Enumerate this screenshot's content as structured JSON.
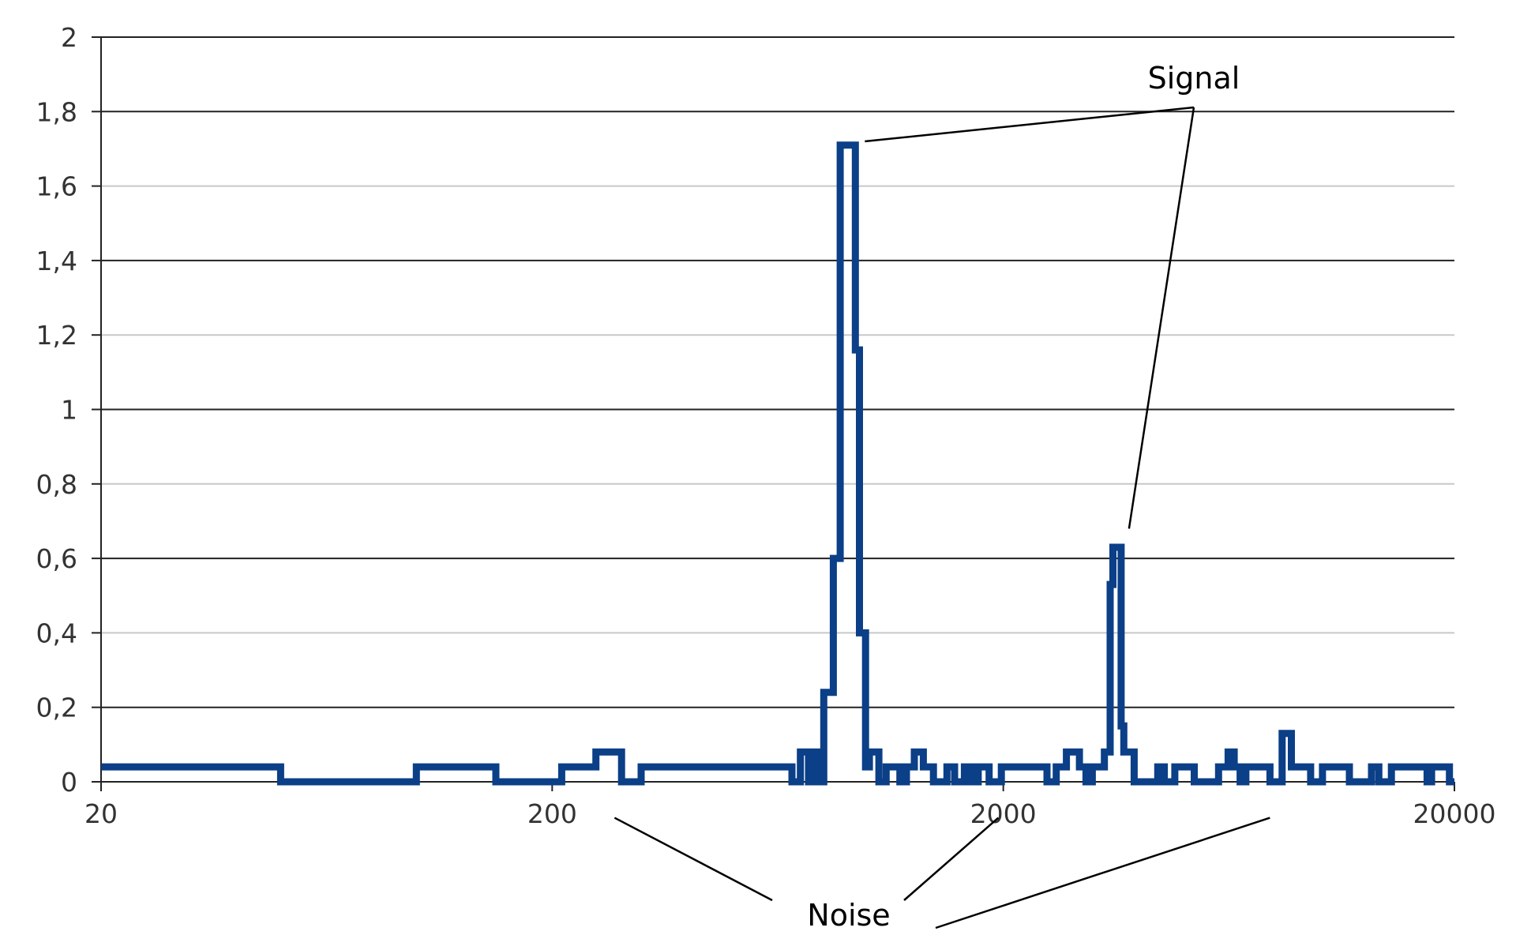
{
  "chart_data": {
    "type": "line",
    "title": "",
    "xlabel": "",
    "ylabel": "",
    "x_scale": "log",
    "xlim": [
      20,
      20000
    ],
    "ylim": [
      0,
      2
    ],
    "x_ticks": [
      20,
      200,
      2000,
      20000
    ],
    "x_tick_labels": [
      "20",
      "200",
      "2000",
      "20000"
    ],
    "y_ticks": [
      0,
      0.2,
      0.4,
      0.6,
      0.8,
      1,
      1.2,
      1.4,
      1.6,
      1.8,
      2
    ],
    "y_tick_labels": [
      "0",
      "0,2",
      "0,4",
      "0,6",
      "0,8",
      "1",
      "1,2",
      "1,4",
      "1,6",
      "1,8",
      "2"
    ],
    "major_gridlines": [
      0,
      0.2,
      0.6,
      1,
      1.4,
      1.8,
      2
    ],
    "minor_gridlines": [
      0.4,
      0.8,
      1.2,
      1.6
    ],
    "legend": "none",
    "line_color": "#0b3f87",
    "series": [
      {
        "step": true,
        "points": [
          [
            20,
            0.04
          ],
          [
            50,
            0.04
          ],
          [
            50,
            0
          ],
          [
            100,
            0
          ],
          [
            100,
            0.04
          ],
          [
            150,
            0.04
          ],
          [
            150,
            0
          ],
          [
            210,
            0
          ],
          [
            210,
            0.04
          ],
          [
            250,
            0.04
          ],
          [
            250,
            0.08
          ],
          [
            285,
            0.08
          ],
          [
            285,
            0
          ],
          [
            315,
            0
          ],
          [
            315,
            0.04
          ],
          [
            680,
            0.04
          ],
          [
            680,
            0
          ],
          [
            710,
            0
          ],
          [
            710,
            0.08
          ],
          [
            740,
            0.08
          ],
          [
            740,
            0
          ],
          [
            760,
            0
          ],
          [
            760,
            0.08
          ],
          [
            780,
            0.08
          ],
          [
            780,
            0
          ],
          [
            800,
            0
          ],
          [
            800,
            0.24
          ],
          [
            840,
            0.24
          ],
          [
            840,
            0.6
          ],
          [
            870,
            0.6
          ],
          [
            870,
            1.71
          ],
          [
            940,
            1.71
          ],
          [
            940,
            1.16
          ],
          [
            960,
            1.16
          ],
          [
            960,
            0.4
          ],
          [
            990,
            0.4
          ],
          [
            990,
            0.04
          ],
          [
            1010,
            0.04
          ],
          [
            1010,
            0.08
          ],
          [
            1060,
            0.08
          ],
          [
            1060,
            0
          ],
          [
            1100,
            0
          ],
          [
            1100,
            0.04
          ],
          [
            1180,
            0.04
          ],
          [
            1180,
            0
          ],
          [
            1220,
            0
          ],
          [
            1220,
            0.04
          ],
          [
            1270,
            0.04
          ],
          [
            1270,
            0.08
          ],
          [
            1330,
            0.08
          ],
          [
            1330,
            0.04
          ],
          [
            1400,
            0.04
          ],
          [
            1400,
            0
          ],
          [
            1500,
            0
          ],
          [
            1500,
            0.04
          ],
          [
            1560,
            0.04
          ],
          [
            1560,
            0
          ],
          [
            1640,
            0
          ],
          [
            1640,
            0.04
          ],
          [
            1700,
            0.04
          ],
          [
            1700,
            0
          ],
          [
            1760,
            0
          ],
          [
            1760,
            0.04
          ],
          [
            1860,
            0.04
          ],
          [
            1860,
            0
          ],
          [
            1980,
            0
          ],
          [
            1980,
            0.04
          ],
          [
            2500,
            0.04
          ],
          [
            2500,
            0
          ],
          [
            2620,
            0
          ],
          [
            2620,
            0.04
          ],
          [
            2760,
            0.04
          ],
          [
            2760,
            0.08
          ],
          [
            2950,
            0.08
          ],
          [
            2950,
            0.04
          ],
          [
            3050,
            0.04
          ],
          [
            3050,
            0
          ],
          [
            3150,
            0
          ],
          [
            3150,
            0.04
          ],
          [
            3350,
            0.04
          ],
          [
            3350,
            0.08
          ],
          [
            3450,
            0.08
          ],
          [
            3450,
            0.53
          ],
          [
            3500,
            0.53
          ],
          [
            3500,
            0.63
          ],
          [
            3650,
            0.63
          ],
          [
            3650,
            0.15
          ],
          [
            3700,
            0.15
          ],
          [
            3700,
            0.08
          ],
          [
            3900,
            0.08
          ],
          [
            3900,
            0
          ],
          [
            4400,
            0
          ],
          [
            4400,
            0.04
          ],
          [
            4550,
            0.04
          ],
          [
            4550,
            0
          ],
          [
            4800,
            0
          ],
          [
            4800,
            0.04
          ],
          [
            5300,
            0.04
          ],
          [
            5300,
            0
          ],
          [
            6000,
            0
          ],
          [
            6000,
            0.04
          ],
          [
            6300,
            0.04
          ],
          [
            6300,
            0.08
          ],
          [
            6500,
            0.08
          ],
          [
            6500,
            0.04
          ],
          [
            6700,
            0.04
          ],
          [
            6700,
            0
          ],
          [
            6900,
            0
          ],
          [
            6900,
            0.04
          ],
          [
            7800,
            0.04
          ],
          [
            7800,
            0
          ],
          [
            8300,
            0
          ],
          [
            8300,
            0.13
          ],
          [
            8700,
            0.13
          ],
          [
            8700,
            0.04
          ],
          [
            9600,
            0.04
          ],
          [
            9600,
            0
          ],
          [
            10200,
            0
          ],
          [
            10200,
            0.04
          ],
          [
            11700,
            0.04
          ],
          [
            11700,
            0
          ],
          [
            13100,
            0
          ],
          [
            13100,
            0.04
          ],
          [
            13600,
            0.04
          ],
          [
            13600,
            0
          ],
          [
            14500,
            0
          ],
          [
            14500,
            0.04
          ],
          [
            17400,
            0.04
          ],
          [
            17400,
            0
          ],
          [
            17800,
            0
          ],
          [
            17800,
            0.04
          ],
          [
            19500,
            0.04
          ],
          [
            19500,
            0
          ],
          [
            20000,
            0
          ]
        ]
      }
    ],
    "annotations": [
      {
        "text": "Signal",
        "pointer_targets": [
          [
            940,
            1.72
          ],
          [
            3620,
            0.68
          ]
        ]
      },
      {
        "text": "Noise",
        "pointer_targets": [
          [
            275,
            -0.05
          ],
          [
            1950,
            -0.05
          ],
          [
            7800,
            -0.05
          ]
        ]
      }
    ]
  }
}
